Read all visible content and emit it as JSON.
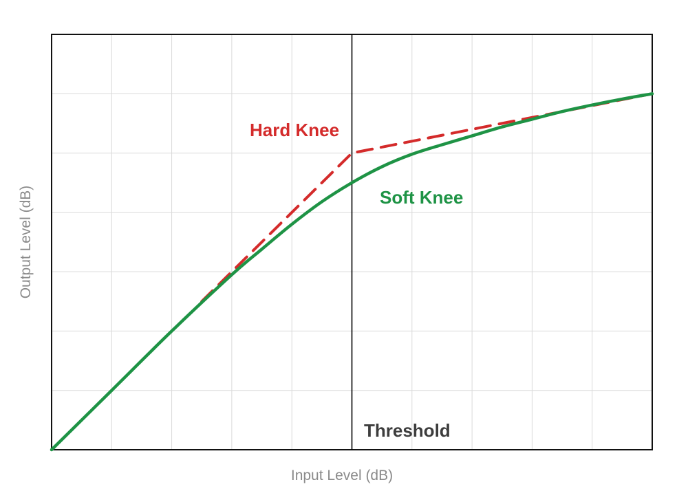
{
  "chart_data": {
    "type": "line",
    "title": "",
    "xlabel": "Input Level (dB)",
    "ylabel": "Output Level (dB)",
    "xlim": [
      0,
      10
    ],
    "ylim": [
      0,
      7
    ],
    "grid": true,
    "threshold": {
      "x": 5,
      "label": "Threshold",
      "color": "#000000"
    },
    "series": [
      {
        "name": "Hard Knee",
        "style": "dashed",
        "color": "#d42b2b",
        "x": [
          2.5,
          5,
          10
        ],
        "y": [
          2.5,
          5,
          6
        ]
      },
      {
        "name": "Soft Knee",
        "style": "solid",
        "color": "#1e9345",
        "x": [
          0,
          1,
          2,
          3,
          3.5,
          4,
          4.5,
          5,
          5.5,
          6,
          6.5,
          7,
          7.5,
          8,
          8.5,
          9,
          9.5,
          10
        ],
        "y": [
          0,
          1,
          2,
          2.95,
          3.38,
          3.8,
          4.18,
          4.5,
          4.77,
          4.98,
          5.14,
          5.29,
          5.44,
          5.57,
          5.7,
          5.81,
          5.91,
          6.0
        ]
      }
    ],
    "annotations": [
      {
        "text": "Hard Knee",
        "series": "Hard Knee",
        "color": "#d42b2b"
      },
      {
        "text": "Soft Knee",
        "series": "Soft Knee",
        "color": "#1e9345"
      },
      {
        "text": "Threshold",
        "series": "threshold",
        "color": "#3d3d3d"
      }
    ]
  }
}
